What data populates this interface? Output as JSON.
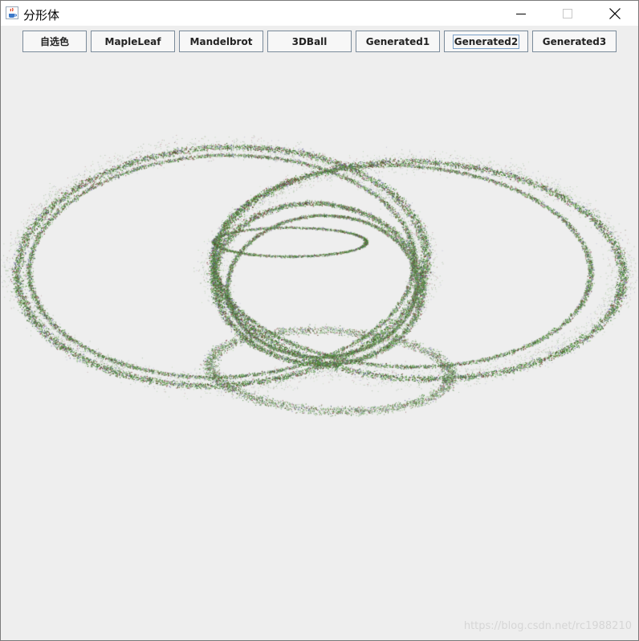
{
  "window": {
    "title": "分形体",
    "app_icon": "java-coffee-cup-icon"
  },
  "window_controls": {
    "minimize_icon": "minimize-icon",
    "maximize_icon": "maximize-icon",
    "close_icon": "close-icon"
  },
  "toolbar": {
    "buttons": [
      {
        "label": "自选色"
      },
      {
        "label": "MapleLeaf"
      },
      {
        "label": "Mandelbrot"
      },
      {
        "label": "3DBall"
      },
      {
        "label": "Generated1"
      },
      {
        "label": "Generated2",
        "focused": true
      },
      {
        "label": "Generated3"
      }
    ]
  },
  "canvas": {
    "fractal": "Generated2",
    "point_colors": [
      "#3f7f2f",
      "#5aa04a",
      "#2f5f22",
      "#7a3030",
      "#6a6aa0",
      "#8aba6a"
    ],
    "background": "#eeeeee"
  },
  "watermark": "https://blog.csdn.net/rc1988210"
}
